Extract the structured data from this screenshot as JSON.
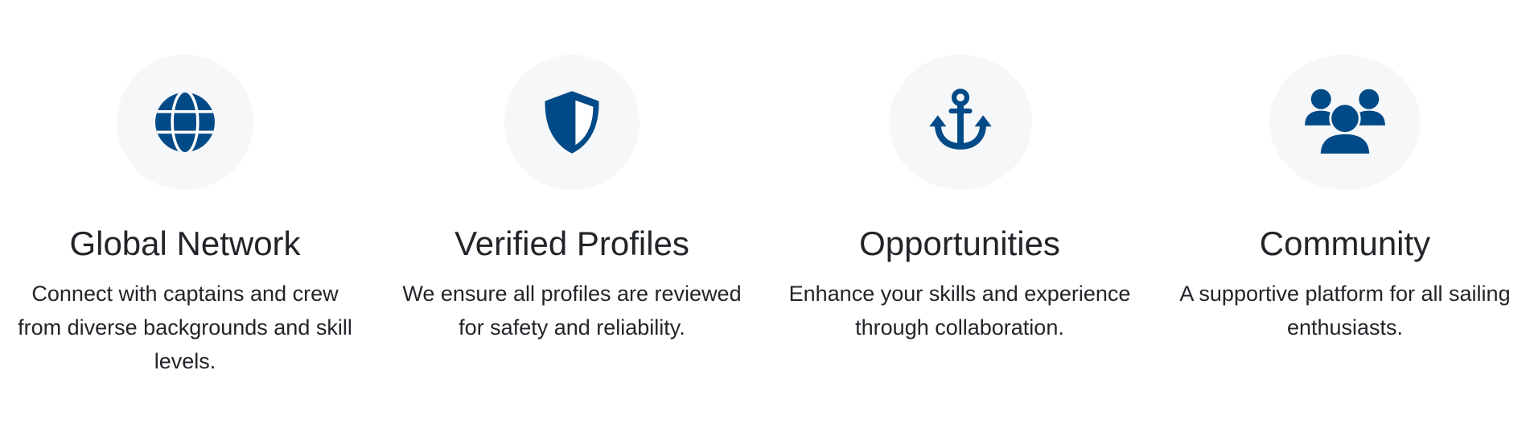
{
  "features": [
    {
      "icon": "globe-icon",
      "title": "Global Network",
      "description_lines": [
        "Connect with captains and crew",
        "from diverse backgrounds and skill",
        "levels."
      ]
    },
    {
      "icon": "shield-icon",
      "title": "Verified Profiles",
      "description_lines": [
        "We ensure all profiles are reviewed",
        "for safety and reliability."
      ]
    },
    {
      "icon": "anchor-icon",
      "title": "Opportunities",
      "description_lines": [
        "Enhance your skills and experience",
        "through collaboration."
      ]
    },
    {
      "icon": "users-icon",
      "title": "Community",
      "description_lines": [
        "A supportive platform for all sailing",
        "enthusiasts."
      ]
    }
  ],
  "colors": {
    "icon": "#004a87",
    "icon_circle_bg": "#f6f7f9",
    "text": "#212529"
  }
}
